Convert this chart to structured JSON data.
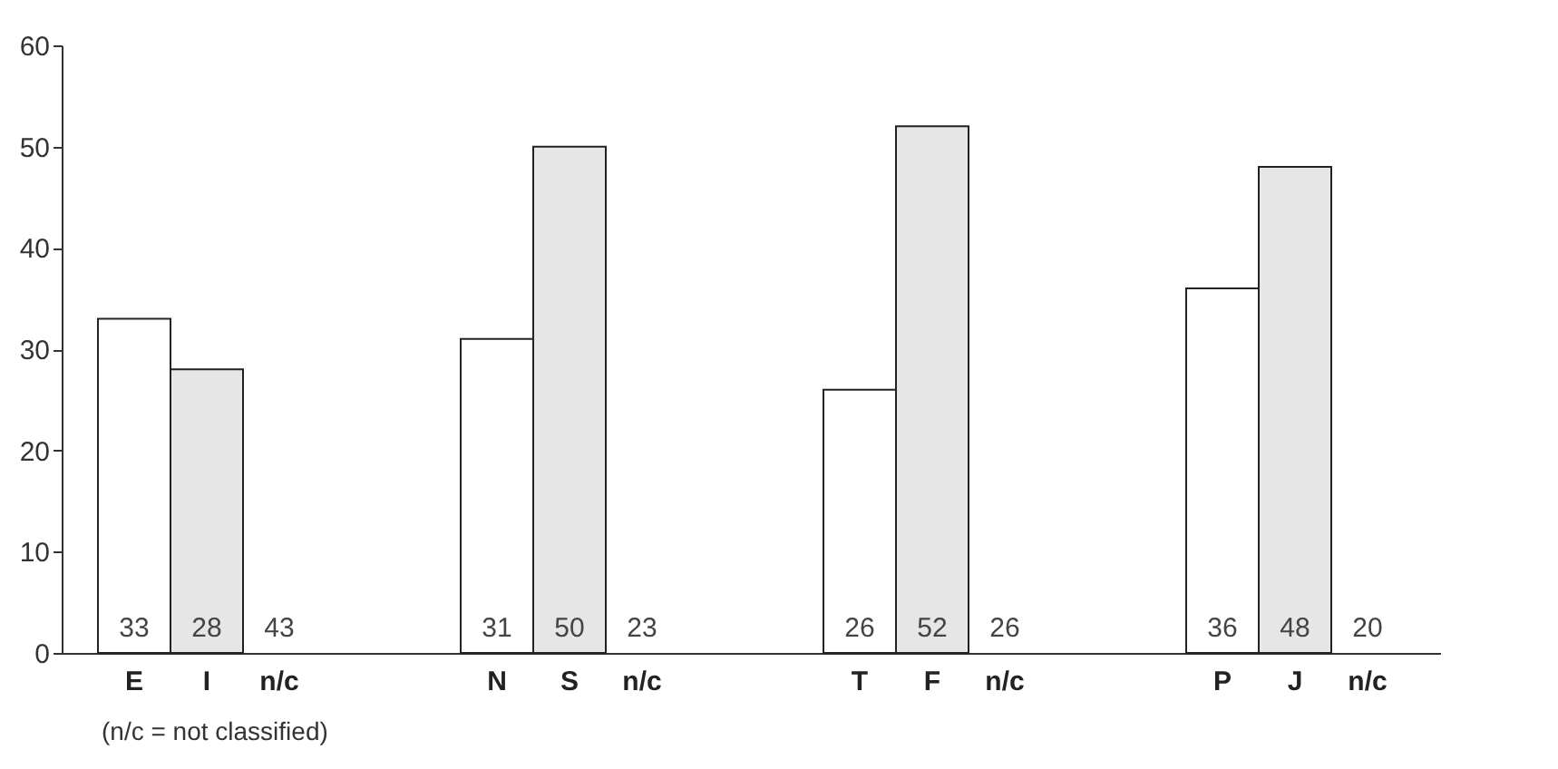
{
  "chart_data": {
    "type": "bar",
    "categories": [
      "E",
      "I",
      "n/c",
      null,
      null,
      "N",
      "S",
      "n/c",
      null,
      null,
      "T",
      "F",
      "n/c",
      null,
      null,
      "P",
      "J",
      "n/c"
    ],
    "values": [
      33,
      28,
      null,
      null,
      null,
      31,
      50,
      null,
      null,
      null,
      26,
      52,
      null,
      null,
      null,
      36,
      48,
      null
    ],
    "colors": [
      "#ffffff",
      "#e6e6e6",
      null,
      null,
      null,
      "#ffffff",
      "#e6e6e6",
      null,
      null,
      null,
      "#ffffff",
      "#e6e6e6",
      null,
      null,
      null,
      "#ffffff",
      "#e6e6e6",
      null
    ],
    "value_labels": [
      "33",
      "28",
      "43",
      null,
      null,
      "31",
      "50",
      "23",
      null,
      null,
      "26",
      "52",
      "26",
      null,
      null,
      "36",
      "48",
      "20"
    ],
    "ylim": [
      0,
      60
    ],
    "yticks": [
      0,
      10,
      20,
      30,
      40,
      50,
      60
    ],
    "grid": false,
    "annotations": [
      "(n/c = not classified)"
    ]
  }
}
